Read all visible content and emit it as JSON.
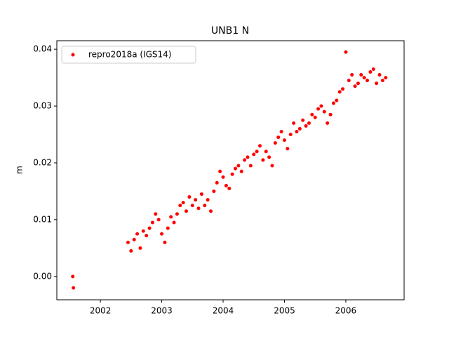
{
  "chart_data": {
    "type": "scatter",
    "title": "UNB1 N",
    "y_label": "m",
    "xlim": [
      2001.29,
      2006.95
    ],
    "ylim": [
      -0.0041,
      0.0415
    ],
    "xticks": [
      2002,
      2003,
      2004,
      2005,
      2006
    ],
    "yticks": [
      {
        "value": 0,
        "label": "0.00"
      },
      {
        "value": 0.01,
        "label": "0.01"
      },
      {
        "value": 0.02,
        "label": "0.02"
      },
      {
        "value": 0.03,
        "label": "0.03"
      },
      {
        "value": 0.04,
        "label": "0.04"
      }
    ],
    "legend": "upper left",
    "series": [
      {
        "name": "repro2018a (IGS14)",
        "color": "#ff0000",
        "x": [
          2001.55,
          2001.56,
          2002.45,
          2002.5,
          2002.55,
          2002.6,
          2002.65,
          2002.7,
          2002.75,
          2002.8,
          2002.85,
          2002.9,
          2002.95,
          2003.0,
          2003.05,
          2003.1,
          2003.15,
          2003.2,
          2003.25,
          2003.3,
          2003.35,
          2003.4,
          2003.45,
          2003.5,
          2003.55,
          2003.6,
          2003.65,
          2003.7,
          2003.75,
          2003.8,
          2003.85,
          2003.9,
          2003.95,
          2004.0,
          2004.05,
          2004.1,
          2004.15,
          2004.2,
          2004.25,
          2004.3,
          2004.35,
          2004.4,
          2004.45,
          2004.5,
          2004.55,
          2004.6,
          2004.65,
          2004.7,
          2004.75,
          2004.8,
          2004.85,
          2004.9,
          2004.95,
          2005.0,
          2005.05,
          2005.1,
          2005.15,
          2005.2,
          2005.25,
          2005.3,
          2005.35,
          2005.4,
          2005.45,
          2005.5,
          2005.55,
          2005.6,
          2005.65,
          2005.7,
          2005.75,
          2005.8,
          2005.85,
          2005.9,
          2005.95,
          2006.0,
          2006.05,
          2006.1,
          2006.15,
          2006.2,
          2006.25,
          2006.3,
          2006.35,
          2006.4,
          2006.45,
          2006.5,
          2006.55,
          2006.6,
          2006.65
        ],
        "values": [
          0.0,
          -0.002,
          0.006,
          0.0045,
          0.0065,
          0.0075,
          0.005,
          0.008,
          0.0072,
          0.0085,
          0.0095,
          0.011,
          0.01,
          0.0075,
          0.006,
          0.0085,
          0.0105,
          0.0095,
          0.011,
          0.0125,
          0.013,
          0.0115,
          0.014,
          0.0125,
          0.0135,
          0.012,
          0.0145,
          0.0125,
          0.0135,
          0.0115,
          0.015,
          0.0165,
          0.0185,
          0.0175,
          0.016,
          0.0155,
          0.018,
          0.019,
          0.0195,
          0.0185,
          0.0205,
          0.021,
          0.0195,
          0.0215,
          0.022,
          0.023,
          0.0205,
          0.022,
          0.021,
          0.0195,
          0.0235,
          0.0245,
          0.0255,
          0.024,
          0.0225,
          0.025,
          0.027,
          0.0255,
          0.026,
          0.0275,
          0.0265,
          0.027,
          0.0285,
          0.028,
          0.0295,
          0.03,
          0.029,
          0.027,
          0.0285,
          0.0305,
          0.031,
          0.0325,
          0.033,
          0.0395,
          0.0345,
          0.0355,
          0.0335,
          0.034,
          0.0355,
          0.035,
          0.0345,
          0.036,
          0.0365,
          0.034,
          0.0355,
          0.0345,
          0.035
        ]
      }
    ]
  }
}
